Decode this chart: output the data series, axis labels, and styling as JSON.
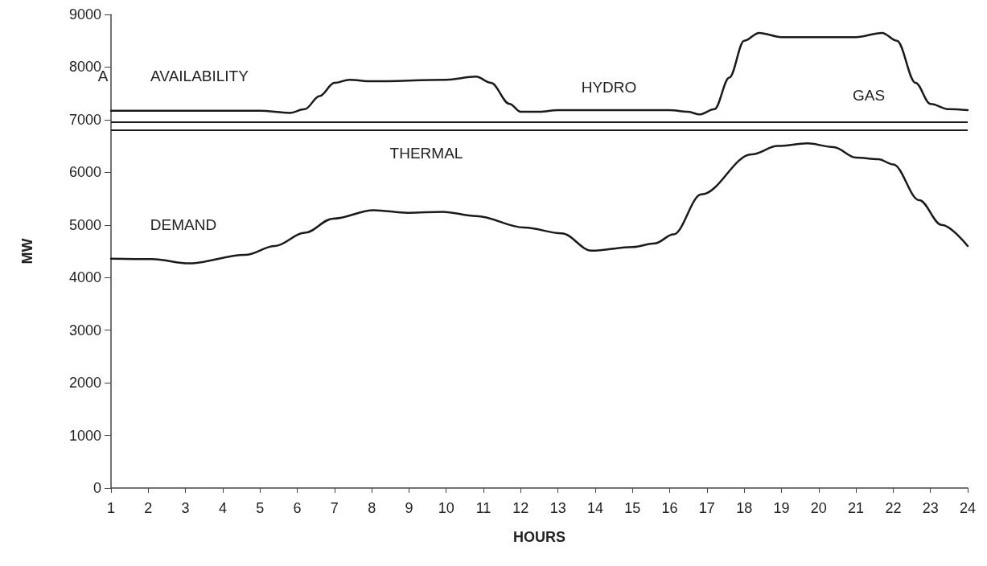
{
  "chart_data": {
    "type": "line",
    "xlabel": "HOURS",
    "ylabel": "MW",
    "xlim": [
      1,
      24
    ],
    "xticks": [
      1,
      2,
      3,
      4,
      5,
      6,
      7,
      8,
      9,
      10,
      11,
      12,
      13,
      14,
      15,
      16,
      17,
      18,
      19,
      20,
      21,
      22,
      23,
      24
    ],
    "ylim": [
      0,
      9000
    ],
    "yticks": [
      0,
      1000,
      2000,
      3000,
      4000,
      5000,
      6000,
      7000,
      8000,
      9000
    ],
    "grid": false,
    "marker": "none",
    "line_style": "solid",
    "series": [
      {
        "color": "#1a1a1a",
        "x": [
          1,
          5,
          5.8,
          6.2,
          6.6,
          7,
          7.4,
          8,
          10,
          10.8,
          11.2,
          11.7,
          12,
          12.5,
          13,
          16,
          16.5,
          16.8,
          17.2,
          17.6,
          18,
          18.4,
          19,
          21,
          21.7,
          22.1,
          22.6,
          23,
          23.5,
          24
        ],
        "values": [
          7170,
          7170,
          7130,
          7200,
          7450,
          7700,
          7760,
          7730,
          7760,
          7820,
          7700,
          7300,
          7150,
          7150,
          7180,
          7180,
          7150,
          7100,
          7200,
          7800,
          8500,
          8650,
          8570,
          8570,
          8650,
          8500,
          7700,
          7300,
          7200,
          7180
        ]
      },
      {
        "color": "#1a1a1a",
        "x": [
          1,
          2.1,
          3.1,
          4.6,
          5.4,
          6.2,
          6.96,
          8.05,
          8.97,
          9.9,
          10.8,
          12.1,
          13.1,
          13.9,
          15,
          15.6,
          16.1,
          16.85,
          18.2,
          18.9,
          19.7,
          20.4,
          21,
          21.6,
          22,
          22.7,
          23.3,
          24
        ],
        "values": [
          4360,
          4350,
          4270,
          4430,
          4600,
          4850,
          5120,
          5280,
          5230,
          5250,
          5170,
          4950,
          4840,
          4510,
          4580,
          4650,
          4820,
          5580,
          6340,
          6500,
          6550,
          6480,
          6280,
          6250,
          6150,
          5470,
          5000,
          4600
        ]
      }
    ],
    "ref_lines": [
      {
        "axis": "y",
        "value": 6950,
        "color": "#1a1a1a"
      },
      {
        "axis": "y",
        "value": 6800,
        "color": "#1a1a1a"
      }
    ],
    "annotations": [
      "A",
      "AVAILABILITY",
      "HYDRO",
      "GAS",
      "THERMAL",
      "DEMAND"
    ]
  }
}
